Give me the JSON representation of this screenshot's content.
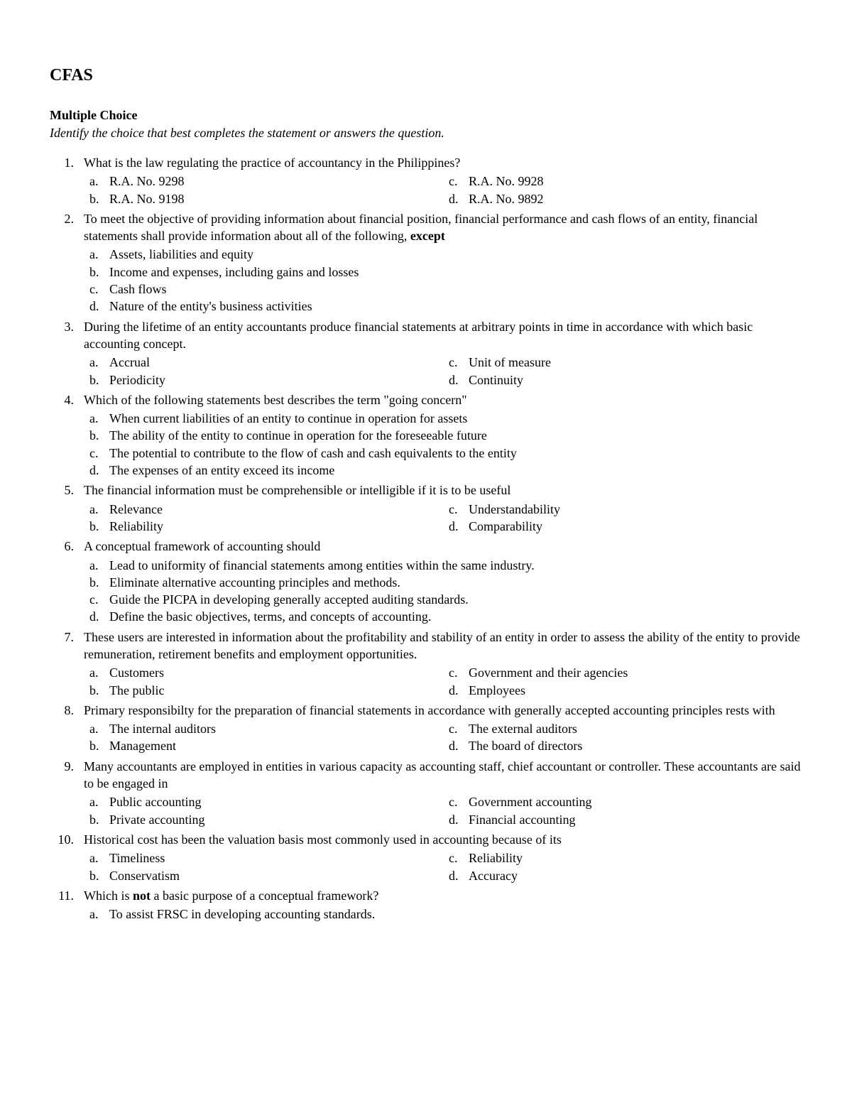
{
  "title": "CFAS",
  "section_header": "Multiple Choice",
  "instructions": "Identify the choice that best completes the statement or answers the question.",
  "questions": [
    {
      "num": "1.",
      "text": "What is the law regulating the practice of accountancy in the Philippines?",
      "layout": "two-col",
      "choices": [
        {
          "letter": "a.",
          "text": "R.A. No. 9298"
        },
        {
          "letter": "b.",
          "text": "R.A. No. 9198"
        },
        {
          "letter": "c.",
          "text": "R.A. No. 9928"
        },
        {
          "letter": "d.",
          "text": "R.A. No. 9892"
        }
      ]
    },
    {
      "num": "2.",
      "text_parts": [
        {
          "text": "To meet the objective of providing information about financial position, financial performance and cash flows of an entity, financial statements shall provide information about all of the following, ",
          "bold": false
        },
        {
          "text": "except",
          "bold": true
        }
      ],
      "layout": "one-col",
      "choices": [
        {
          "letter": "a.",
          "text": "Assets, liabilities and equity"
        },
        {
          "letter": "b.",
          "text": "Income and expenses, including gains and losses"
        },
        {
          "letter": "c.",
          "text": "Cash flows"
        },
        {
          "letter": "d.",
          "text": "Nature of the entity's business activities"
        }
      ]
    },
    {
      "num": "3.",
      "text": "During the lifetime of an entity accountants produce financial statements at arbitrary points in time in accordance with which basic accounting concept.",
      "layout": "two-col",
      "choices": [
        {
          "letter": "a.",
          "text": "Accrual"
        },
        {
          "letter": "b.",
          "text": "Periodicity"
        },
        {
          "letter": "c.",
          "text": "Unit of measure"
        },
        {
          "letter": "d.",
          "text": "Continuity"
        }
      ]
    },
    {
      "num": "4.",
      "text": "Which of the following statements best describes the term \"going concern\"",
      "layout": "one-col",
      "choices": [
        {
          "letter": "a.",
          "text": "When current liabilities of an entity to continue in operation for assets"
        },
        {
          "letter": "b.",
          "text": "The ability of the entity to continue in operation for the foreseeable future"
        },
        {
          "letter": "c.",
          "text": "The potential to contribute to the flow of cash and cash equivalents to the entity"
        },
        {
          "letter": "d.",
          "text": "The expenses of an entity exceed its income"
        }
      ]
    },
    {
      "num": "5.",
      "text": "The financial information must be comprehensible or intelligible if it is to be useful",
      "layout": "two-col",
      "choices": [
        {
          "letter": "a.",
          "text": "Relevance"
        },
        {
          "letter": "b.",
          "text": "Reliability"
        },
        {
          "letter": "c.",
          "text": "Understandability"
        },
        {
          "letter": "d.",
          "text": "Comparability"
        }
      ]
    },
    {
      "num": "6.",
      "text": "A conceptual framework of accounting should",
      "layout": "one-col",
      "choices": [
        {
          "letter": "a.",
          "text": "Lead to uniformity of financial statements among entities within the same industry."
        },
        {
          "letter": "b.",
          "text": "Eliminate alternative accounting principles and methods."
        },
        {
          "letter": "c.",
          "text": "Guide the PICPA in developing generally accepted auditing standards."
        },
        {
          "letter": "d.",
          "text": "Define the basic objectives, terms, and concepts of accounting."
        }
      ]
    },
    {
      "num": "7.",
      "text": "These users are interested in information about the profitability and stability of an entity in order to assess the ability of the entity to provide remuneration, retirement benefits and employment opportunities.",
      "layout": "two-col",
      "choices": [
        {
          "letter": "a.",
          "text": "Customers"
        },
        {
          "letter": "b.",
          "text": "The public"
        },
        {
          "letter": "c.",
          "text": "Government and their agencies"
        },
        {
          "letter": "d.",
          "text": "Employees"
        }
      ]
    },
    {
      "num": "8.",
      "text": "Primary responsibilty for the preparation of financial statements in accordance with generally accepted accounting principles rests with",
      "layout": "two-col",
      "choices": [
        {
          "letter": "a.",
          "text": "The internal auditors"
        },
        {
          "letter": "b.",
          "text": "Management"
        },
        {
          "letter": "c.",
          "text": "The external auditors"
        },
        {
          "letter": "d.",
          "text": "The board of directors"
        }
      ]
    },
    {
      "num": "9.",
      "text": "Many accountants are employed in entities in various capacity as accounting staff, chief accountant or controller. These accountants are said to be engaged in",
      "layout": "two-col",
      "choices": [
        {
          "letter": "a.",
          "text": "Public accounting"
        },
        {
          "letter": "b.",
          "text": "Private accounting"
        },
        {
          "letter": "c.",
          "text": "Government accounting"
        },
        {
          "letter": "d.",
          "text": "Financial accounting"
        }
      ]
    },
    {
      "num": "10.",
      "text": "Historical cost has been the valuation basis most commonly used in accounting because of its",
      "layout": "two-col",
      "choices": [
        {
          "letter": "a.",
          "text": "Timeliness"
        },
        {
          "letter": "b.",
          "text": "Conservatism"
        },
        {
          "letter": "c.",
          "text": "Reliability"
        },
        {
          "letter": "d.",
          "text": "Accuracy"
        }
      ]
    },
    {
      "num": "11.",
      "text_parts": [
        {
          "text": "Which is ",
          "bold": false
        },
        {
          "text": "not",
          "bold": true
        },
        {
          "text": " a basic purpose of a conceptual framework?",
          "bold": false
        }
      ],
      "layout": "one-col",
      "choices": [
        {
          "letter": "a.",
          "text": "To assist FRSC in developing accounting standards."
        }
      ]
    }
  ]
}
